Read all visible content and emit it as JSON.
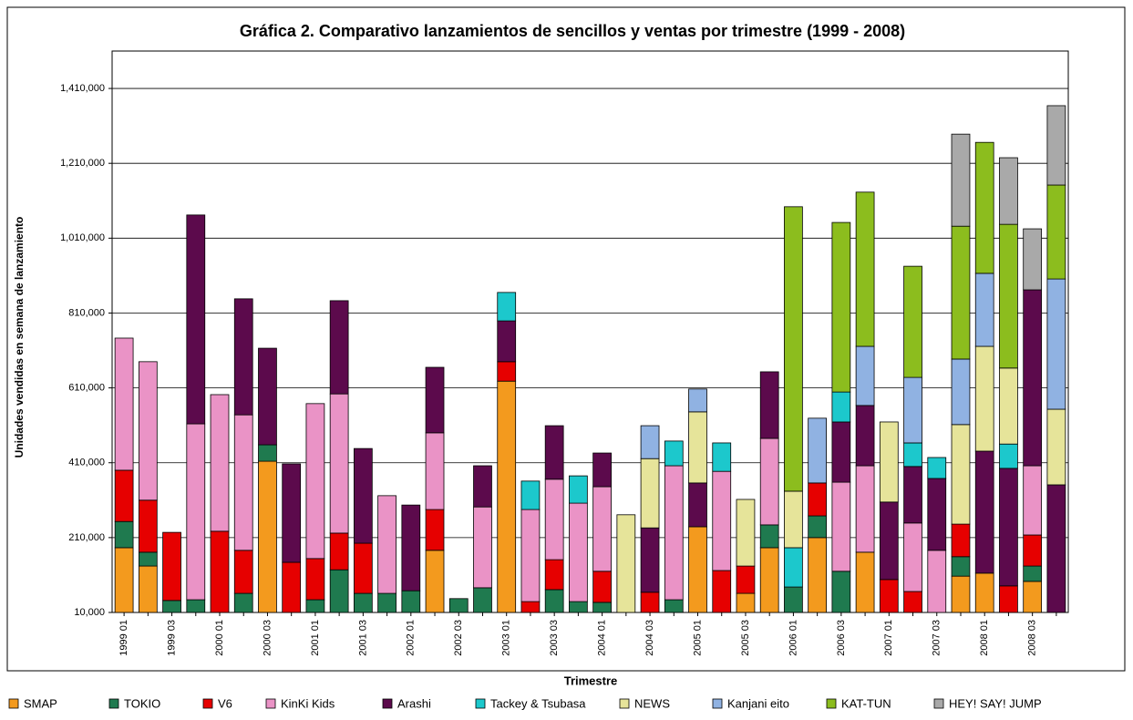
{
  "chart_data": {
    "type": "stacked_bar",
    "title": "Gráfica 2. Comparativo lanzamientos de sencillos y ventas por trimestre (1999 - 2008)",
    "x_label": "Trimestre",
    "y_label": "Unidades vendidas en semana de lanzamiento",
    "categories": [
      "1999 01",
      null,
      "1999 03",
      null,
      "2000 01",
      null,
      "2000 03",
      null,
      "2001 01",
      null,
      "2001 03",
      null,
      "2002 01",
      null,
      "2002 03",
      null,
      "2003 01",
      null,
      "2003 03",
      null,
      "2004 01",
      null,
      "2004 03",
      null,
      "2005 01",
      null,
      "2005 03",
      null,
      "2006 01",
      null,
      "2006 03",
      null,
      "2007 01",
      null,
      "2007 03",
      null,
      "2008 01",
      null,
      "2008 03",
      null
    ],
    "ylim": [
      10000,
      1510000
    ],
    "yticks": [
      {
        "value": 10000,
        "label": "10,000"
      },
      {
        "value": 210000,
        "label": "210,000"
      },
      {
        "value": 410000,
        "label": "410,000"
      },
      {
        "value": 610000,
        "label": "610,000"
      },
      {
        "value": 810000,
        "label": "810,000"
      },
      {
        "value": 1010000,
        "label": "1,010,000"
      },
      {
        "value": 1210000,
        "label": "1,210,000"
      },
      {
        "value": 1410000,
        "label": "1,410,000"
      }
    ],
    "grid": true,
    "legend": "bottom",
    "series": [
      {
        "name": "SMAP",
        "color": "#f39a1e",
        "values": [
          183000,
          134000,
          null,
          null,
          null,
          null,
          414000,
          null,
          null,
          null,
          null,
          null,
          null,
          176000,
          null,
          null,
          628000,
          null,
          null,
          null,
          null,
          null,
          null,
          null,
          239000,
          null,
          61000,
          183000,
          null,
          210000,
          null,
          171000,
          null,
          null,
          null,
          107000,
          115000,
          null,
          93000,
          null
        ]
      },
      {
        "name": "TOKIO",
        "color": "#1f7a4f",
        "values": [
          70000,
          37000,
          42000,
          44000,
          null,
          61000,
          44000,
          null,
          44000,
          124000,
          61000,
          61000,
          68000,
          null,
          47000,
          76000,
          null,
          null,
          71000,
          39000,
          37000,
          null,
          null,
          44000,
          null,
          null,
          null,
          61000,
          78000,
          58000,
          120000,
          null,
          null,
          null,
          null,
          52000,
          null,
          null,
          41000,
          null
        ]
      },
      {
        "name": "V6",
        "color": "#e60000",
        "values": [
          137000,
          139000,
          182000,
          null,
          227000,
          115000,
          null,
          144000,
          110000,
          98000,
          134000,
          null,
          null,
          109000,
          null,
          null,
          52000,
          39000,
          80000,
          null,
          83000,
          null,
          64000,
          null,
          null,
          122000,
          73000,
          null,
          null,
          88000,
          null,
          null,
          98000,
          66000,
          null,
          87000,
          null,
          81000,
          83000,
          null
        ]
      },
      {
        "name": "KinKi Kids",
        "color": "#ea93c6",
        "values": [
          353000,
          370000,
          null,
          470000,
          365000,
          362000,
          null,
          null,
          414000,
          372000,
          null,
          261000,
          null,
          205000,
          null,
          216000,
          null,
          246000,
          215000,
          263000,
          226000,
          null,
          null,
          358000,
          null,
          265000,
          null,
          231000,
          null,
          null,
          238000,
          231000,
          null,
          183000,
          176000,
          null,
          null,
          null,
          185000,
          null
        ]
      },
      {
        "name": "Arashi",
        "color": "#5c0a4c",
        "values": [
          null,
          null,
          null,
          558000,
          null,
          310000,
          258000,
          263000,
          null,
          249000,
          253000,
          null,
          229000,
          175000,
          null,
          110000,
          109000,
          null,
          143000,
          null,
          90000,
          null,
          172000,
          null,
          117000,
          null,
          null,
          178000,
          null,
          null,
          161000,
          161000,
          207000,
          151000,
          192000,
          null,
          326000,
          314000,
          470000,
          351000
        ]
      },
      {
        "name": "Tackey & Tsubasa",
        "color": "#1cc8cc",
        "values": [
          null,
          null,
          null,
          null,
          null,
          null,
          null,
          null,
          null,
          null,
          null,
          null,
          null,
          null,
          null,
          null,
          76000,
          76000,
          null,
          73000,
          null,
          null,
          null,
          66000,
          null,
          76000,
          null,
          null,
          105000,
          null,
          80000,
          null,
          null,
          63000,
          56000,
          null,
          null,
          65000,
          null,
          null
        ]
      },
      {
        "name": "NEWS",
        "color": "#e6e49a",
        "values": [
          null,
          null,
          null,
          null,
          null,
          null,
          null,
          null,
          null,
          null,
          null,
          null,
          null,
          null,
          null,
          null,
          null,
          null,
          null,
          null,
          null,
          271000,
          185000,
          null,
          190000,
          null,
          178000,
          null,
          151000,
          null,
          null,
          null,
          214000,
          null,
          null,
          266000,
          280000,
          203000,
          null,
          202000
        ]
      },
      {
        "name": "Kanjani eito",
        "color": "#90b2e2",
        "values": [
          null,
          null,
          null,
          null,
          null,
          null,
          null,
          null,
          null,
          null,
          null,
          null,
          null,
          null,
          null,
          null,
          null,
          null,
          null,
          null,
          null,
          null,
          88000,
          null,
          61000,
          null,
          null,
          null,
          null,
          173000,
          null,
          158000,
          null,
          175000,
          null,
          175000,
          195000,
          null,
          null,
          348000
        ]
      },
      {
        "name": "KAT-TUN",
        "color": "#8cbd1e",
        "values": [
          null,
          null,
          null,
          null,
          null,
          null,
          null,
          null,
          null,
          null,
          null,
          null,
          null,
          null,
          null,
          null,
          null,
          null,
          null,
          null,
          null,
          null,
          null,
          null,
          null,
          null,
          null,
          null,
          760000,
          null,
          453000,
          412000,
          null,
          297000,
          null,
          355000,
          350000,
          384000,
          null,
          251000
        ]
      },
      {
        "name": "HEY! SAY! JUMP",
        "color": "#a9a9a9",
        "values": [
          null,
          null,
          null,
          null,
          null,
          null,
          null,
          null,
          null,
          null,
          null,
          null,
          null,
          null,
          null,
          null,
          null,
          null,
          null,
          null,
          null,
          null,
          null,
          null,
          null,
          null,
          null,
          null,
          null,
          null,
          null,
          null,
          null,
          null,
          null,
          246000,
          null,
          178000,
          163000,
          212000
        ]
      }
    ]
  }
}
